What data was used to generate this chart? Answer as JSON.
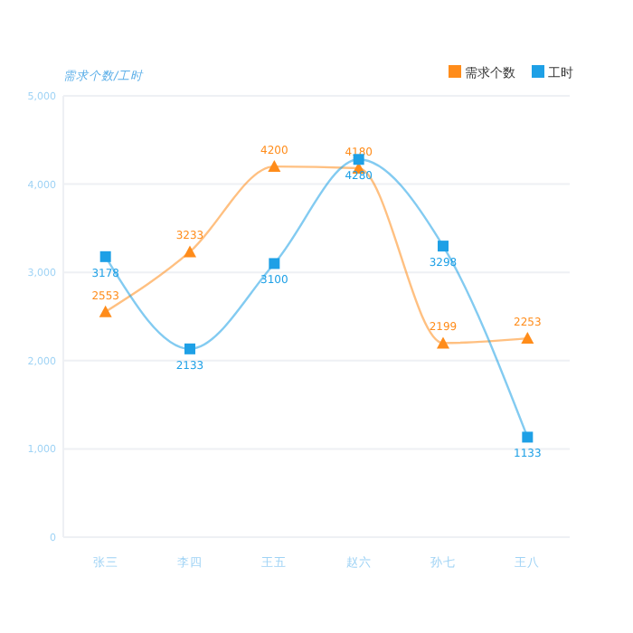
{
  "chart_data": {
    "type": "line",
    "ylabel": "需求个数/工时",
    "categories": [
      "张三",
      "李四",
      "王五",
      "赵六",
      "孙七",
      "王八"
    ],
    "series": [
      {
        "name": "需求个数",
        "color": "#ff8c1a",
        "marker": "triangle",
        "values": [
          2553,
          3233,
          4200,
          4180,
          2199,
          2253
        ]
      },
      {
        "name": "工时",
        "color": "#1ea0e6",
        "marker": "square",
        "values": [
          3178,
          2133,
          3100,
          4280,
          3298,
          1133
        ]
      }
    ],
    "ylim": [
      0,
      5000
    ],
    "yticks": [
      0,
      {
        "value": 1000,
        "label": "1,000"
      },
      {
        "value": 2000,
        "label": "2,000"
      },
      {
        "value": 3000,
        "label": "3,000"
      },
      {
        "value": 4000,
        "label": "4,000"
      },
      {
        "value": 5000,
        "label": "5,000"
      }
    ],
    "grid": "y",
    "legend": "top right",
    "data_labels": true
  }
}
